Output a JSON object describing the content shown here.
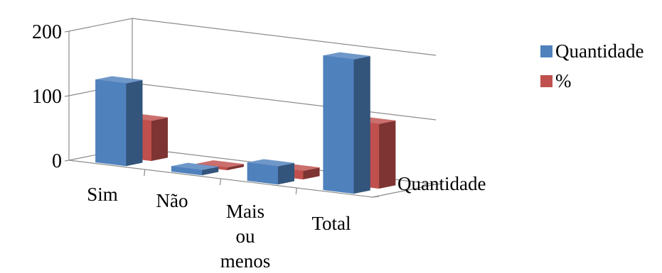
{
  "chart_data": {
    "type": "bar",
    "title": "",
    "categories": [
      "Sim",
      "Não",
      "Mais ou menos",
      "Total"
    ],
    "category_lines": [
      [
        "Sim"
      ],
      [
        "Não"
      ],
      [
        "Mais",
        "ou",
        "menos"
      ],
      [
        "Total"
      ]
    ],
    "series": [
      {
        "name": "Quantidade",
        "values": [
          128,
          8,
          28,
          208
        ],
        "color": "#4F81BD"
      },
      {
        "name": "%",
        "values": [
          62,
          4,
          13,
          100
        ],
        "color": "#C0504D"
      }
    ],
    "depth_axis_label": "Quantidade",
    "ylim": [
      0,
      200
    ],
    "yticks": [
      "0",
      "100",
      "200"
    ],
    "grid": true,
    "legend_position": "right",
    "three_d": true
  }
}
